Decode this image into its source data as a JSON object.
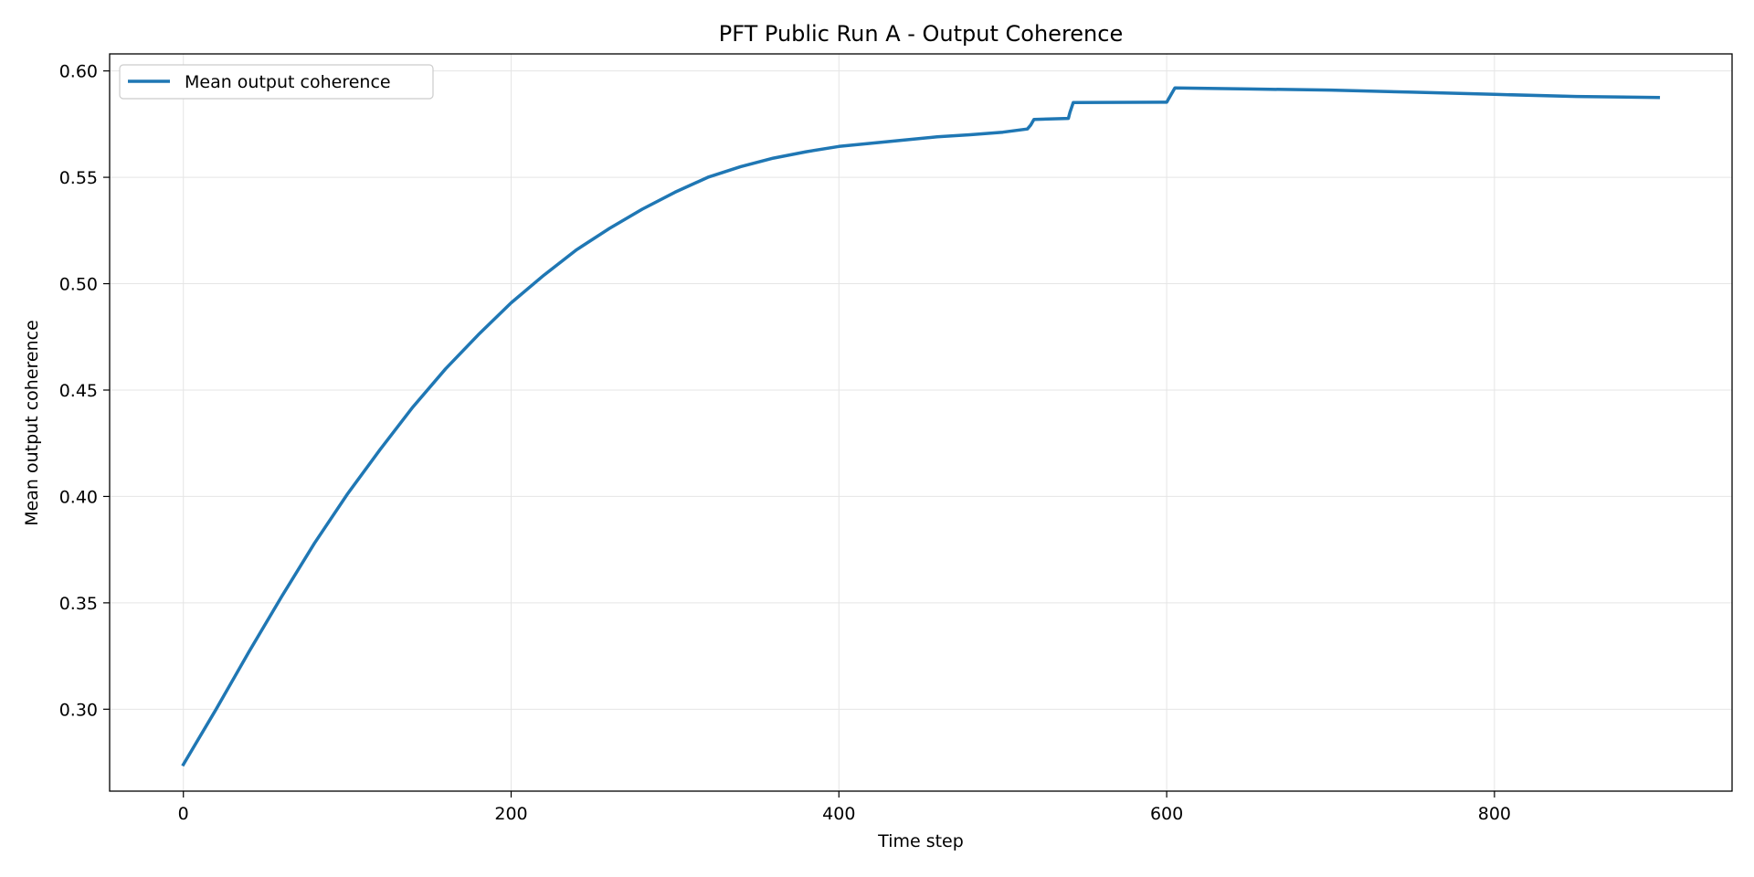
{
  "chart_data": {
    "type": "line",
    "title": "PFT Public Run A - Output Coherence",
    "xlabel": "Time step",
    "ylabel": "Mean output coherence",
    "xlim": [
      -45,
      945
    ],
    "ylim": [
      0.2615,
      0.608
    ],
    "xticks": [
      0,
      200,
      400,
      600,
      800
    ],
    "yticks": [
      0.3,
      0.35,
      0.4,
      0.45,
      0.5,
      0.55,
      0.6
    ],
    "xtick_labels": [
      "0",
      "200",
      "400",
      "600",
      "800"
    ],
    "ytick_labels": [
      "0.30",
      "0.35",
      "0.40",
      "0.45",
      "0.50",
      "0.55",
      "0.60"
    ],
    "grid": true,
    "legend_position": "top-left",
    "color": "#1f77b4",
    "series": [
      {
        "name": "Mean output coherence",
        "x": [
          0,
          20,
          40,
          60,
          80,
          100,
          120,
          140,
          160,
          180,
          200,
          220,
          240,
          260,
          280,
          300,
          320,
          340,
          360,
          380,
          400,
          420,
          440,
          460,
          480,
          500,
          515,
          517,
          519,
          540,
          541,
          543,
          600,
          602,
          605,
          650,
          700,
          750,
          800,
          850,
          900
        ],
        "y": [
          0.274,
          0.3,
          0.327,
          0.353,
          0.378,
          0.401,
          0.422,
          0.442,
          0.46,
          0.476,
          0.491,
          0.504,
          0.516,
          0.526,
          0.535,
          0.543,
          0.55,
          0.555,
          0.559,
          0.562,
          0.5645,
          0.566,
          0.5675,
          0.569,
          0.57,
          0.5712,
          0.5727,
          0.5745,
          0.5772,
          0.5777,
          0.5805,
          0.5851,
          0.5853,
          0.588,
          0.592,
          0.5915,
          0.591,
          0.59,
          0.589,
          0.588,
          0.5875
        ]
      }
    ]
  }
}
